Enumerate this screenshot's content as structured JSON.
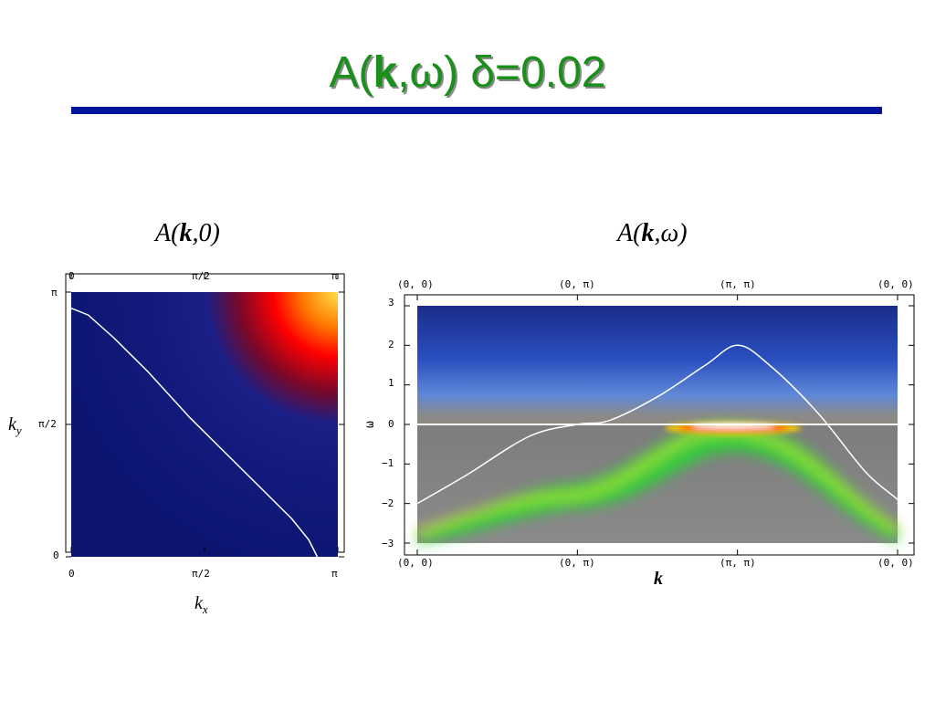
{
  "slide": {
    "title_prefix": "A(",
    "title_bold": "k",
    "title_suffix": ",ω)  δ=0.02"
  },
  "left_panel": {
    "subtitle_prefix": "A(",
    "subtitle_bold": "k",
    "subtitle_suffix": ",0)",
    "xlabel": "k",
    "xlabel_sub": "x",
    "ylabel": "k",
    "ylabel_sub": "y",
    "x_ticks": [
      "0",
      "π/2",
      "π"
    ],
    "y_ticks": [
      "0",
      "π/2",
      "π"
    ]
  },
  "right_panel": {
    "subtitle_prefix": "A(",
    "subtitle_bold": "k",
    "subtitle_suffix": ",ω)",
    "xlabel": "k",
    "ylabel": "ω",
    "x_ticks": [
      "(0, 0)",
      "(0, π)",
      "(π, π)",
      "(0, 0)"
    ],
    "y_ticks": [
      "3",
      "2",
      "1",
      "0",
      "−1",
      "−2",
      "−3"
    ]
  },
  "chart_data": [
    {
      "type": "heatmap",
      "title": "A(k,0)",
      "xlabel": "kx",
      "ylabel": "ky",
      "xlim": [
        0,
        3.1416
      ],
      "ylim": [
        0,
        3.1416
      ],
      "colormap": [
        "#0a0f6e",
        "#1e2a9a",
        "#ff0000",
        "#ffd000"
      ],
      "fermi_surface": {
        "color": "#ffffff",
        "points": [
          [
            0.0,
            2.95
          ],
          [
            0.2,
            2.87
          ],
          [
            0.5,
            2.6
          ],
          [
            0.9,
            2.2
          ],
          [
            1.4,
            1.65
          ],
          [
            1.8,
            1.25
          ],
          [
            2.2,
            0.85
          ],
          [
            2.6,
            0.45
          ],
          [
            2.8,
            0.2
          ],
          [
            2.9,
            0.0
          ]
        ]
      },
      "peak": {
        "kx": 3.1416,
        "ky": 3.1416
      }
    },
    {
      "type": "heatmap",
      "title": "A(k,ω)",
      "xlabel": "k",
      "ylabel": "ω",
      "x_path": [
        "(0, 0)",
        "(0, π)",
        "(π, π)",
        "(0, 0)"
      ],
      "ylim": [
        -3,
        3
      ],
      "bare_dispersion": {
        "color": "#ffffff",
        "points": [
          [
            0.0,
            -2.0
          ],
          [
            0.3,
            -1.3
          ],
          [
            0.7,
            -0.3
          ],
          [
            1.0,
            0.0
          ],
          [
            1.2,
            0.1
          ],
          [
            1.5,
            0.7
          ],
          [
            1.8,
            1.5
          ],
          [
            2.0,
            2.0
          ],
          [
            2.2,
            1.5
          ],
          [
            2.5,
            0.3
          ],
          [
            2.8,
            -1.2
          ],
          [
            3.0,
            -1.9
          ],
          [
            3.0,
            -2.0
          ]
        ]
      },
      "fermi_level": 0
    }
  ]
}
